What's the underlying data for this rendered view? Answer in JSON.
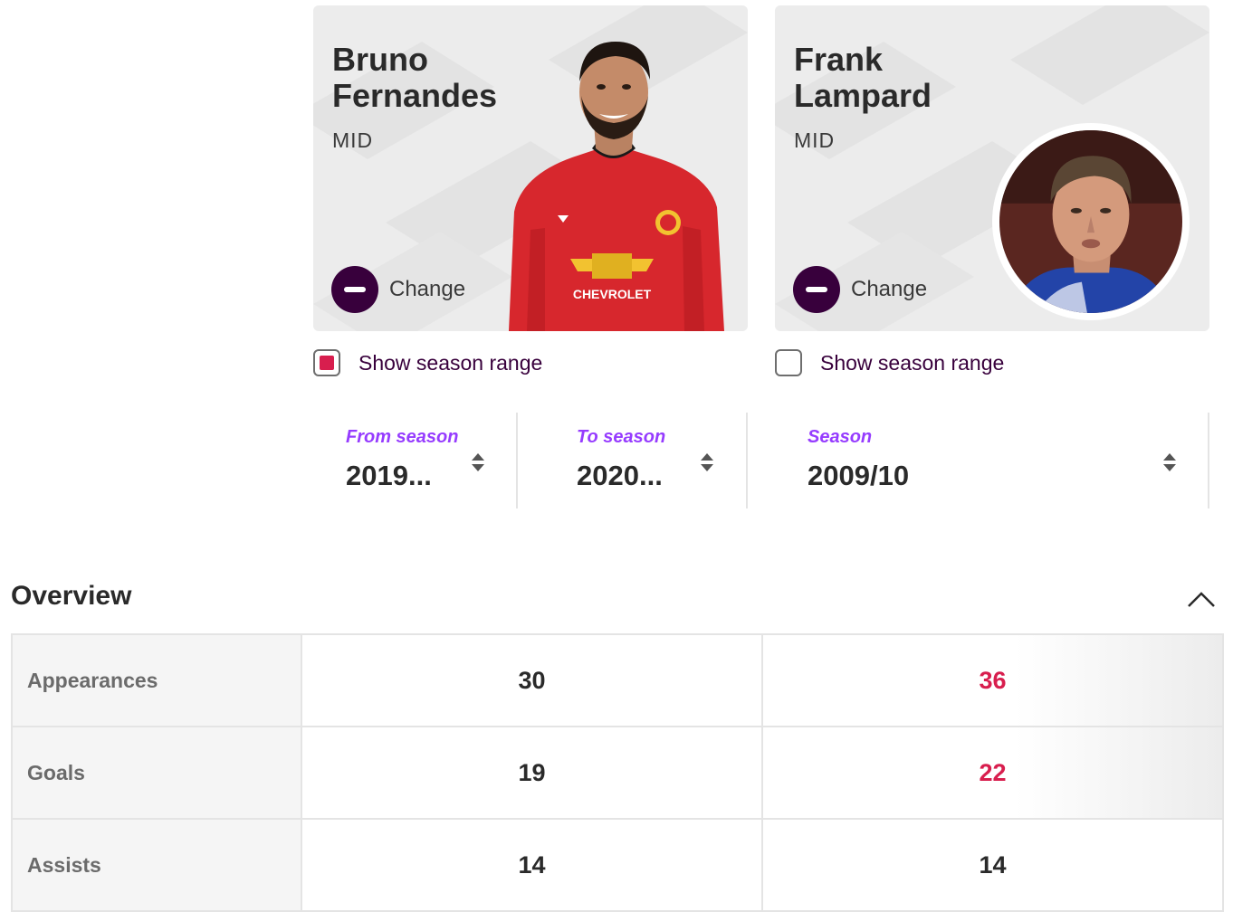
{
  "players": [
    {
      "name": "Bruno\nFernandes",
      "position": "MID",
      "change_label": "Change",
      "show_season_range_label": "Show season range",
      "show_season_range_checked": true,
      "kit_sponsor": "CHEVROLET"
    },
    {
      "name": "Frank\nLampard",
      "position": "MID",
      "change_label": "Change",
      "show_season_range_label": "Show season range",
      "show_season_range_checked": false
    }
  ],
  "season_selectors": [
    {
      "caption": "From season",
      "value": "2019..."
    },
    {
      "caption": "To season",
      "value": "2020..."
    },
    {
      "caption": "Season",
      "value": "2009/10"
    }
  ],
  "overview": {
    "title": "Overview",
    "rows": [
      {
        "label": "Appearances",
        "player1": "30",
        "player2": "36"
      },
      {
        "label": "Goals",
        "player1": "19",
        "player2": "22"
      },
      {
        "label": "Assists",
        "player1": "14",
        "player2": "14"
      }
    ]
  },
  "colors": {
    "accent_purple": "#963cff",
    "brand_dark": "#38003c",
    "highlight_red": "#d81e4e",
    "card_bg": "#ececec"
  },
  "icons": {
    "change": "minus-circle-icon",
    "season_sort": "sort-up-down-icon",
    "collapse": "chevron-up-icon"
  }
}
